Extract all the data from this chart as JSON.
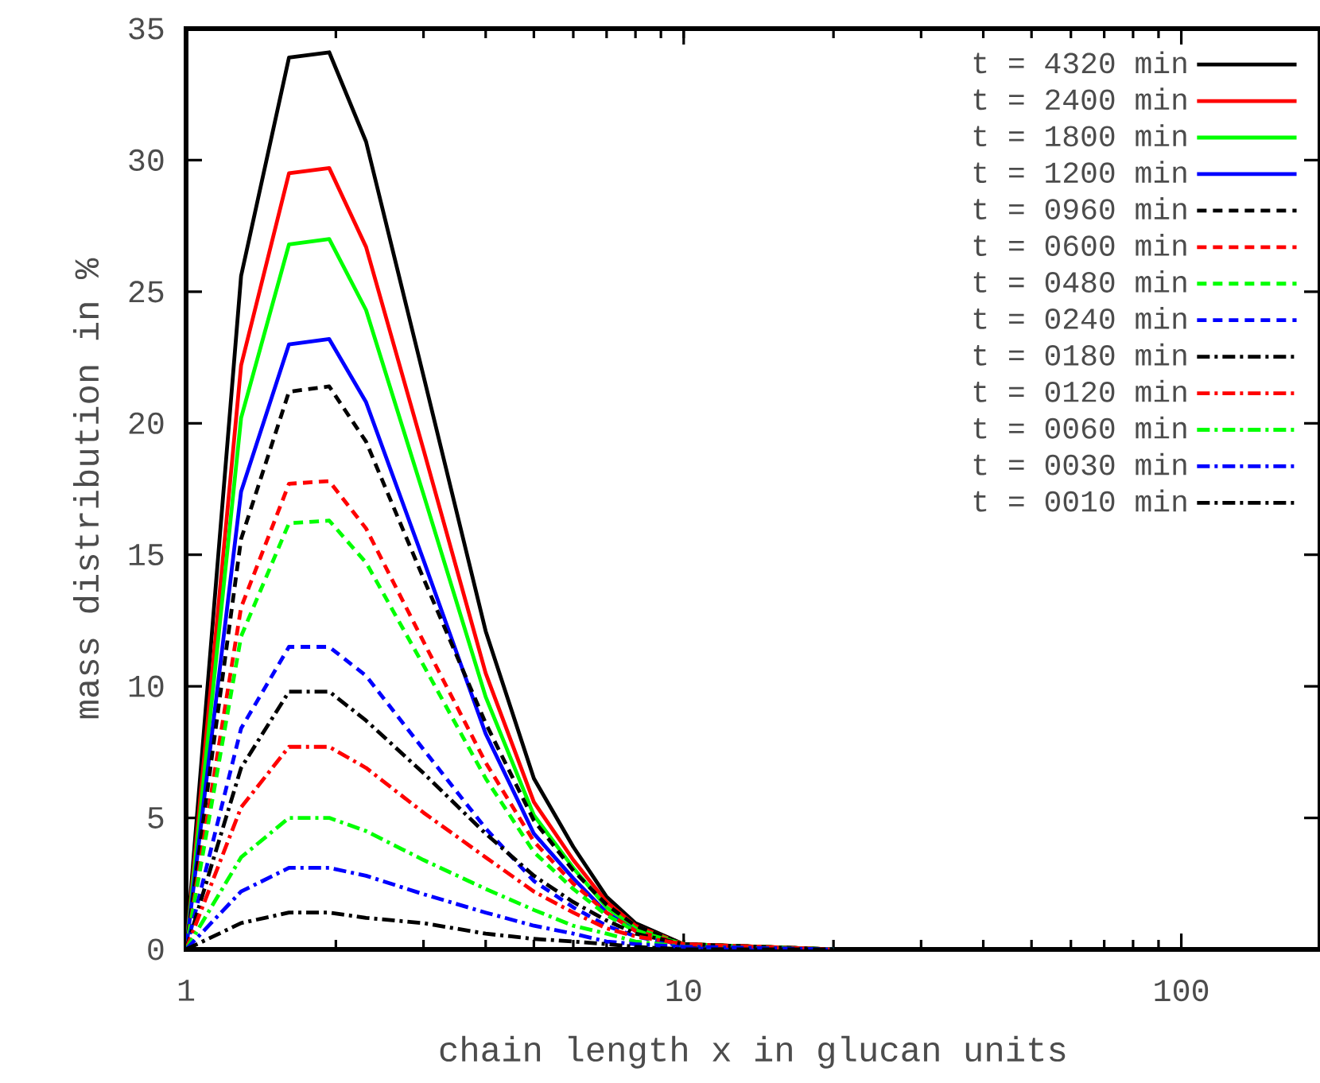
{
  "chart_data": {
    "type": "line",
    "xlabel": "chain length x in glucan units",
    "ylabel": "mass distribution in %",
    "log": "x",
    "xlim": [
      1,
      190
    ],
    "xticks": [
      1,
      10,
      100
    ],
    "ylim": [
      0,
      35
    ],
    "yticks": [
      0,
      5,
      10,
      15,
      20,
      25,
      30,
      35
    ],
    "grid": false,
    "legend": "top right",
    "marker": "none",
    "x": [
      1,
      1.29,
      1.61,
      1.94,
      2.3,
      3,
      4,
      5,
      6,
      7,
      8,
      10,
      20,
      50,
      100,
      190
    ],
    "series": [
      {
        "name": "t = 4320 min",
        "color": "#000000",
        "line_style": "solid",
        "values": [
          0,
          25.6,
          33.9,
          34.1,
          30.7,
          21.8,
          12.1,
          6.5,
          3.9,
          2.0,
          1.0,
          0.2,
          0,
          null,
          null,
          null
        ]
      },
      {
        "name": "t = 2400 min",
        "color": "#ff0000",
        "line_style": "solid",
        "values": [
          0,
          22.2,
          29.5,
          29.7,
          26.7,
          19.0,
          10.5,
          5.6,
          3.4,
          1.8,
          0.9,
          0.2,
          0,
          null,
          null,
          null
        ]
      },
      {
        "name": "t = 1800 min",
        "color": "#00ff00",
        "line_style": "solid",
        "values": [
          0,
          20.2,
          26.8,
          27.0,
          24.3,
          17.3,
          9.6,
          5.1,
          3.1,
          1.6,
          0.8,
          0.2,
          0,
          null,
          null,
          null
        ]
      },
      {
        "name": "t = 1200 min",
        "color": "#0000ff",
        "line_style": "solid",
        "values": [
          0,
          17.4,
          23.0,
          23.2,
          20.8,
          14.8,
          8.2,
          4.4,
          2.7,
          1.4,
          0.7,
          0.1,
          0,
          null,
          null,
          null
        ]
      },
      {
        "name": "t = 0960 min",
        "color": "#000000",
        "line_style": "dashed",
        "values": [
          0,
          15.6,
          21.2,
          21.4,
          19.3,
          14.1,
          8.6,
          4.9,
          3.0,
          1.7,
          0.9,
          0.2,
          0,
          null,
          null,
          null
        ]
      },
      {
        "name": "t = 0600 min",
        "color": "#ff0000",
        "line_style": "dashed",
        "values": [
          0,
          13.0,
          17.7,
          17.8,
          16.0,
          11.7,
          7.1,
          4.1,
          2.5,
          1.4,
          0.7,
          0.2,
          0,
          null,
          null,
          null
        ]
      },
      {
        "name": "t = 0480 min",
        "color": "#00ff00",
        "line_style": "dashed",
        "values": [
          0,
          11.9,
          16.2,
          16.3,
          14.7,
          10.8,
          6.5,
          3.7,
          2.3,
          1.3,
          0.7,
          0.2,
          0,
          null,
          null,
          null
        ]
      },
      {
        "name": "t = 0240 min",
        "color": "#0000ff",
        "line_style": "dashed",
        "values": [
          0,
          8.4,
          11.5,
          11.5,
          10.4,
          7.6,
          4.6,
          2.6,
          1.6,
          0.9,
          0.5,
          0.1,
          0,
          null,
          null,
          null
        ]
      },
      {
        "name": "t = 0180 min",
        "color": "#000000",
        "line_style": "dashdot",
        "values": [
          0,
          6.9,
          9.8,
          9.8,
          8.7,
          6.7,
          4.4,
          2.8,
          1.8,
          1.1,
          0.6,
          0.2,
          0,
          null,
          null,
          null
        ]
      },
      {
        "name": "t = 0120 min",
        "color": "#ff0000",
        "line_style": "dashdot",
        "values": [
          0,
          5.4,
          7.7,
          7.7,
          6.9,
          5.2,
          3.5,
          2.2,
          1.4,
          0.8,
          0.5,
          0.2,
          0,
          null,
          null,
          null
        ]
      },
      {
        "name": "t = 0060 min",
        "color": "#00ff00",
        "line_style": "dashdot",
        "values": [
          0,
          3.5,
          5.0,
          5.0,
          4.5,
          3.4,
          2.3,
          1.5,
          0.9,
          0.6,
          0.3,
          0.1,
          0,
          null,
          null,
          null
        ]
      },
      {
        "name": "t = 0030 min",
        "color": "#0000ff",
        "line_style": "dashdot",
        "values": [
          0,
          2.2,
          3.1,
          3.1,
          2.8,
          2.1,
          1.4,
          0.9,
          0.6,
          0.3,
          0.2,
          0.1,
          0,
          null,
          null,
          null
        ]
      },
      {
        "name": "t = 0010 min",
        "color": "#000000",
        "line_style": "dashdot",
        "values": [
          0,
          1.0,
          1.4,
          1.4,
          1.2,
          1.0,
          0.6,
          0.4,
          0.3,
          0.2,
          0.1,
          0.0,
          0,
          0,
          0,
          0
        ]
      }
    ]
  }
}
